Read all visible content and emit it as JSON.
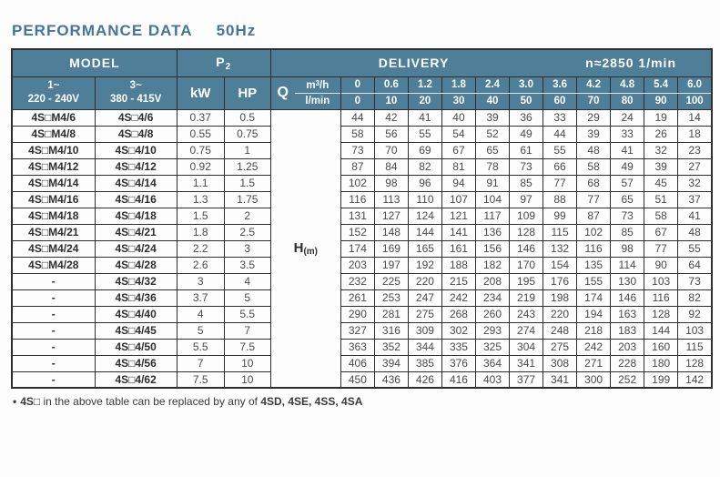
{
  "title": {
    "main": "PERFORMANCE  DATA",
    "frequency": "50Hz"
  },
  "colors": {
    "header_bg": "#4e7e98",
    "title_text": "#44759a",
    "border": "#2e2e2e"
  },
  "table": {
    "header": {
      "model": "MODEL",
      "p2_main": "P",
      "p2_sub": "2",
      "delivery": "DELIVERY",
      "speed": "n≈2850 1/min",
      "phase1_line1": "1~",
      "phase1_line2": "220 - 240V",
      "phase2_line1": "3~",
      "phase2_line2": "380 - 415V",
      "kw": "kW",
      "hp": "HP",
      "q": "Q",
      "m3h_unit_main": "m",
      "m3h_unit_sup": "3",
      "m3h_unit_rest": "/h",
      "lmin_unit": "l/min",
      "h_main": "H",
      "h_sub": "(m)",
      "m3h_values": [
        "0",
        "0.6",
        "1.2",
        "1.8",
        "2.4",
        "3.0",
        "3.6",
        "4.2",
        "4.8",
        "5.4",
        "6.0"
      ],
      "lmin_values": [
        "0",
        "10",
        "20",
        "30",
        "40",
        "50",
        "60",
        "70",
        "80",
        "90",
        "100"
      ]
    },
    "rows": [
      {
        "model1": "4S□M4/6",
        "model2": "4S□4/6",
        "kw": "0.37",
        "hp": "0.5",
        "values": [
          "44",
          "42",
          "41",
          "40",
          "39",
          "36",
          "33",
          "29",
          "24",
          "19",
          "14"
        ]
      },
      {
        "model1": "4S□M4/8",
        "model2": "4S□4/8",
        "kw": "0.55",
        "hp": "0.75",
        "values": [
          "58",
          "56",
          "55",
          "54",
          "52",
          "49",
          "44",
          "39",
          "33",
          "26",
          "18"
        ]
      },
      {
        "model1": "4S□M4/10",
        "model2": "4S□4/10",
        "kw": "0.75",
        "hp": "1",
        "values": [
          "73",
          "70",
          "69",
          "67",
          "65",
          "61",
          "55",
          "48",
          "41",
          "32",
          "23"
        ]
      },
      {
        "model1": "4S□M4/12",
        "model2": "4S□4/12",
        "kw": "0.92",
        "hp": "1.25",
        "values": [
          "87",
          "84",
          "82",
          "81",
          "78",
          "73",
          "66",
          "58",
          "49",
          "39",
          "27"
        ]
      },
      {
        "model1": "4S□M4/14",
        "model2": "4S□4/14",
        "kw": "1.1",
        "hp": "1.5",
        "values": [
          "102",
          "98",
          "96",
          "94",
          "91",
          "85",
          "77",
          "68",
          "57",
          "45",
          "32"
        ]
      },
      {
        "model1": "4S□M4/16",
        "model2": "4S□4/16",
        "kw": "1.3",
        "hp": "1.75",
        "values": [
          "116",
          "113",
          "110",
          "107",
          "104",
          "97",
          "88",
          "77",
          "65",
          "51",
          "37"
        ]
      },
      {
        "model1": "4S□M4/18",
        "model2": "4S□4/18",
        "kw": "1.5",
        "hp": "2",
        "values": [
          "131",
          "127",
          "124",
          "121",
          "117",
          "109",
          "99",
          "87",
          "73",
          "58",
          "41"
        ]
      },
      {
        "model1": "4S□M4/21",
        "model2": "4S□4/21",
        "kw": "1.8",
        "hp": "2.5",
        "values": [
          "152",
          "148",
          "144",
          "141",
          "136",
          "128",
          "115",
          "102",
          "85",
          "67",
          "48"
        ]
      },
      {
        "model1": "4S□M4/24",
        "model2": "4S□4/24",
        "kw": "2.2",
        "hp": "3",
        "values": [
          "174",
          "169",
          "165",
          "161",
          "156",
          "146",
          "132",
          "116",
          "98",
          "77",
          "55"
        ]
      },
      {
        "model1": "4S□M4/28",
        "model2": "4S□4/28",
        "kw": "2.6",
        "hp": "3.5",
        "values": [
          "203",
          "197",
          "192",
          "188",
          "182",
          "170",
          "154",
          "135",
          "114",
          "90",
          "64"
        ]
      },
      {
        "model1": "-",
        "model2": "4S□4/32",
        "kw": "3",
        "hp": "4",
        "values": [
          "232",
          "225",
          "220",
          "215",
          "208",
          "195",
          "176",
          "155",
          "130",
          "103",
          "73"
        ]
      },
      {
        "model1": "-",
        "model2": "4S□4/36",
        "kw": "3.7",
        "hp": "5",
        "values": [
          "261",
          "253",
          "247",
          "242",
          "234",
          "219",
          "198",
          "174",
          "146",
          "116",
          "82"
        ]
      },
      {
        "model1": "-",
        "model2": "4S□4/40",
        "kw": "4",
        "hp": "5.5",
        "values": [
          "290",
          "281",
          "275",
          "268",
          "260",
          "243",
          "220",
          "194",
          "163",
          "128",
          "92"
        ]
      },
      {
        "model1": "-",
        "model2": "4S□4/45",
        "kw": "5",
        "hp": "7",
        "values": [
          "327",
          "316",
          "309",
          "302",
          "293",
          "274",
          "248",
          "218",
          "183",
          "144",
          "103"
        ]
      },
      {
        "model1": "-",
        "model2": "4S□4/50",
        "kw": "5.5",
        "hp": "7.5",
        "values": [
          "363",
          "352",
          "344",
          "335",
          "325",
          "304",
          "275",
          "242",
          "203",
          "160",
          "115"
        ]
      },
      {
        "model1": "-",
        "model2": "4S□4/56",
        "kw": "7",
        "hp": "10",
        "values": [
          "406",
          "394",
          "385",
          "376",
          "364",
          "341",
          "308",
          "271",
          "228",
          "180",
          "128"
        ]
      },
      {
        "model1": "-",
        "model2": "4S□4/62",
        "kw": "7.5",
        "hp": "10",
        "values": [
          "450",
          "436",
          "426",
          "416",
          "403",
          "377",
          "341",
          "300",
          "252",
          "199",
          "142"
        ]
      }
    ]
  },
  "footnote": {
    "bullet": "•",
    "bold_start": "4S□",
    "text": " in the above table can be replaced by any of ",
    "bold_end": "4SD, 4SE, 4SS, 4SA"
  }
}
